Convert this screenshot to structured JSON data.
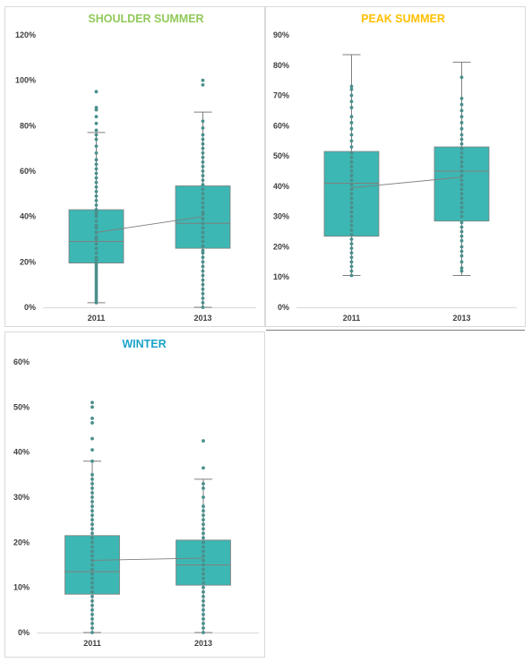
{
  "chart_data": [
    {
      "type": "box",
      "title": "SHOULDER SUMMER",
      "title_color": "#92c95b",
      "categories": [
        "2011",
        "2013"
      ],
      "yticks": [
        "0%",
        "20%",
        "40%",
        "60%",
        "80%",
        "100%",
        "120%"
      ],
      "ylim": [
        0,
        120
      ],
      "box_color": "#3db7b3",
      "point_color": "#4a8f8c",
      "boxes": [
        {
          "category": "2011",
          "min": 2,
          "q1": 19.5,
          "median": 29,
          "mean": 33,
          "q3": 43,
          "max": 77,
          "points": [
            2,
            3,
            4,
            5,
            6,
            7,
            8,
            9,
            10,
            11,
            12,
            13,
            14,
            15,
            16,
            17,
            18,
            19,
            20,
            21,
            22,
            24,
            26,
            28,
            30,
            31,
            33,
            35,
            36,
            38,
            40,
            41,
            42,
            43,
            45,
            47,
            49,
            51,
            53,
            55,
            57,
            59,
            61,
            63,
            65,
            68,
            71,
            74,
            76,
            78,
            81,
            84,
            87,
            88,
            95
          ]
        },
        {
          "category": "2013",
          "min": 0,
          "q1": 26,
          "median": 37,
          "mean": 40,
          "q3": 53.5,
          "max": 86,
          "points": [
            0,
            2,
            4,
            6,
            8,
            10,
            12,
            14,
            16,
            18,
            20,
            22,
            24,
            25,
            27,
            29,
            31,
            33,
            35,
            37,
            39,
            41,
            42,
            44,
            46,
            48,
            50,
            52,
            54,
            56,
            58,
            60,
            62,
            64,
            66,
            68,
            70,
            72,
            74,
            76,
            79,
            82,
            98,
            100
          ]
        }
      ]
    },
    {
      "type": "box",
      "title": "PEAK SUMMER",
      "title_color": "#ffc000",
      "categories": [
        "2011",
        "2013"
      ],
      "yticks": [
        "0%",
        "10%",
        "20%",
        "30%",
        "40%",
        "50%",
        "60%",
        "70%",
        "80%",
        "90%"
      ],
      "ylim": [
        0,
        90
      ],
      "box_color": "#3db7b3",
      "point_color": "#4a8f8c",
      "boxes": [
        {
          "category": "2011",
          "min": 10.5,
          "q1": 23.5,
          "median": 41,
          "mean": 39.5,
          "q3": 51.5,
          "max": 83.5,
          "points": [
            10.5,
            12,
            13.5,
            15,
            16.5,
            18,
            19.5,
            21,
            22.5,
            24,
            25.5,
            27,
            28.5,
            30,
            31.5,
            33,
            34.5,
            36,
            37.5,
            39,
            40.5,
            42,
            43.5,
            45,
            46.5,
            48,
            49.5,
            51,
            53,
            55,
            57,
            59,
            61,
            63,
            66,
            68,
            70,
            72,
            73
          ]
        },
        {
          "category": "2013",
          "min": 10.5,
          "q1": 28.5,
          "median": 45,
          "mean": 43,
          "q3": 53,
          "max": 81,
          "points": [
            12,
            13,
            15,
            17,
            18.5,
            20,
            22,
            23.5,
            25,
            26.5,
            28,
            30,
            31.5,
            33,
            34.5,
            36,
            37.5,
            39,
            40.5,
            42,
            43.5,
            45,
            46.5,
            48,
            49.5,
            51,
            52.5,
            54,
            55.5,
            57,
            59,
            61,
            63,
            65,
            67,
            69,
            76
          ]
        }
      ]
    },
    {
      "type": "box",
      "title": "WINTER",
      "title_color": "#1ca3c9",
      "categories": [
        "2011",
        "2013"
      ],
      "yticks": [
        "0%",
        "10%",
        "20%",
        "30%",
        "40%",
        "50%",
        "60%"
      ],
      "ylim": [
        0,
        60
      ],
      "box_color": "#3db7b3",
      "point_color": "#4a8f8c",
      "boxes": [
        {
          "category": "2011",
          "min": 0,
          "q1": 8.5,
          "median": 13.5,
          "mean": 16,
          "q3": 21.5,
          "max": 38,
          "points": [
            0,
            1,
            2,
            3,
            4,
            5,
            6,
            7,
            8,
            9,
            10,
            11,
            12,
            13,
            14,
            15,
            16,
            17,
            18,
            19,
            20,
            21,
            22,
            23,
            24,
            25,
            26,
            27,
            28,
            29,
            30,
            31,
            32,
            33,
            34,
            35,
            38,
            40.5,
            43,
            46.5,
            47.5,
            50,
            51
          ]
        },
        {
          "category": "2013",
          "min": 0,
          "q1": 10.5,
          "median": 15,
          "mean": 16.5,
          "q3": 20.5,
          "max": 34,
          "points": [
            0,
            1,
            2,
            3,
            4,
            5,
            6,
            7,
            8,
            9,
            10,
            11,
            12,
            13,
            14,
            15,
            16,
            17,
            18,
            19,
            20,
            21,
            22,
            23,
            24,
            25,
            26,
            27,
            28,
            30,
            32,
            33,
            36.5,
            42.5
          ]
        }
      ]
    }
  ]
}
